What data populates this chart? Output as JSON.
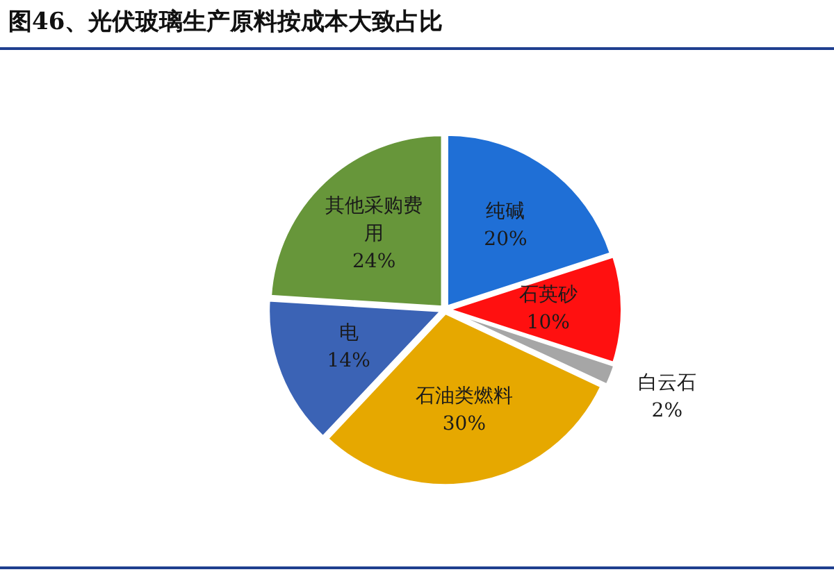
{
  "chart_data": {
    "type": "pie",
    "title": "图46、光伏玻璃生产原料按成本大致占比",
    "categories": [
      "纯碱",
      "石英砂",
      "白云石",
      "石油类燃料",
      "电",
      "其他采购费用"
    ],
    "values": [
      20,
      10,
      2,
      30,
      14,
      24
    ],
    "value_labels": [
      "20%",
      "10%",
      "2%",
      "30%",
      "14%",
      "24%"
    ],
    "colors": [
      "#1f6fd6",
      "#ff1010",
      "#a6a6a6",
      "#e6a800",
      "#3b63b5",
      "#67963a"
    ],
    "legend": false
  }
}
